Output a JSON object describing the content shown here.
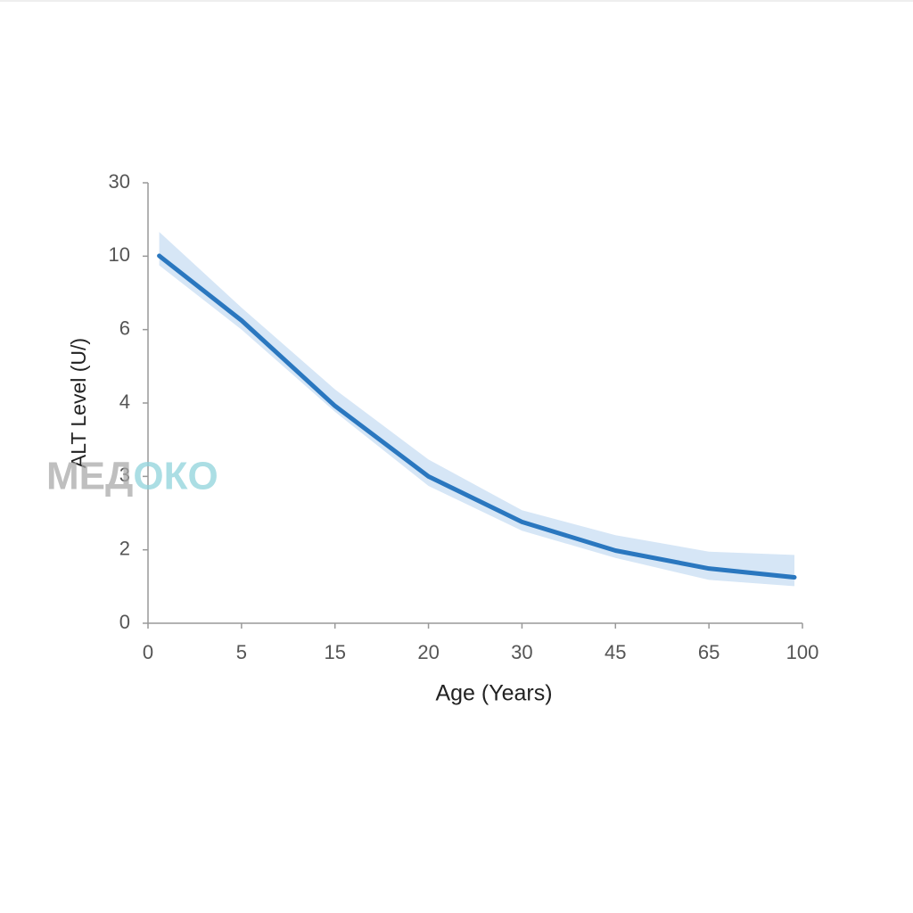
{
  "chart_data": {
    "type": "line",
    "x_label": "Age (Years)",
    "y_label": "ALT Level (U/)",
    "scale": "piecewise",
    "x": [
      0.6,
      5,
      15,
      20,
      30,
      45,
      65,
      97
    ],
    "series": [
      {
        "color": "#2a77bf",
        "values": [
          10.1,
          6.5,
          3.96,
          3.0,
          2.38,
          1.98,
          1.49,
          1.25
        ]
      }
    ],
    "band": {
      "color": "#d6e6f6",
      "upper": [
        16.6,
        7.2,
        4.37,
        3.23,
        2.54,
        2.2,
        1.95,
        1.86
      ],
      "lower": [
        9.5,
        6.0,
        3.88,
        2.87,
        2.26,
        1.78,
        1.18,
        1.01
      ]
    },
    "xlim": [
      0,
      100
    ],
    "ylim": [
      0,
      30
    ],
    "xticks": [
      0,
      5,
      15,
      20,
      30,
      45,
      65,
      100
    ],
    "yticks": [
      0,
      2,
      3,
      4,
      6,
      10,
      30
    ],
    "watermark": [
      "МЕД",
      "ОКО"
    ]
  }
}
